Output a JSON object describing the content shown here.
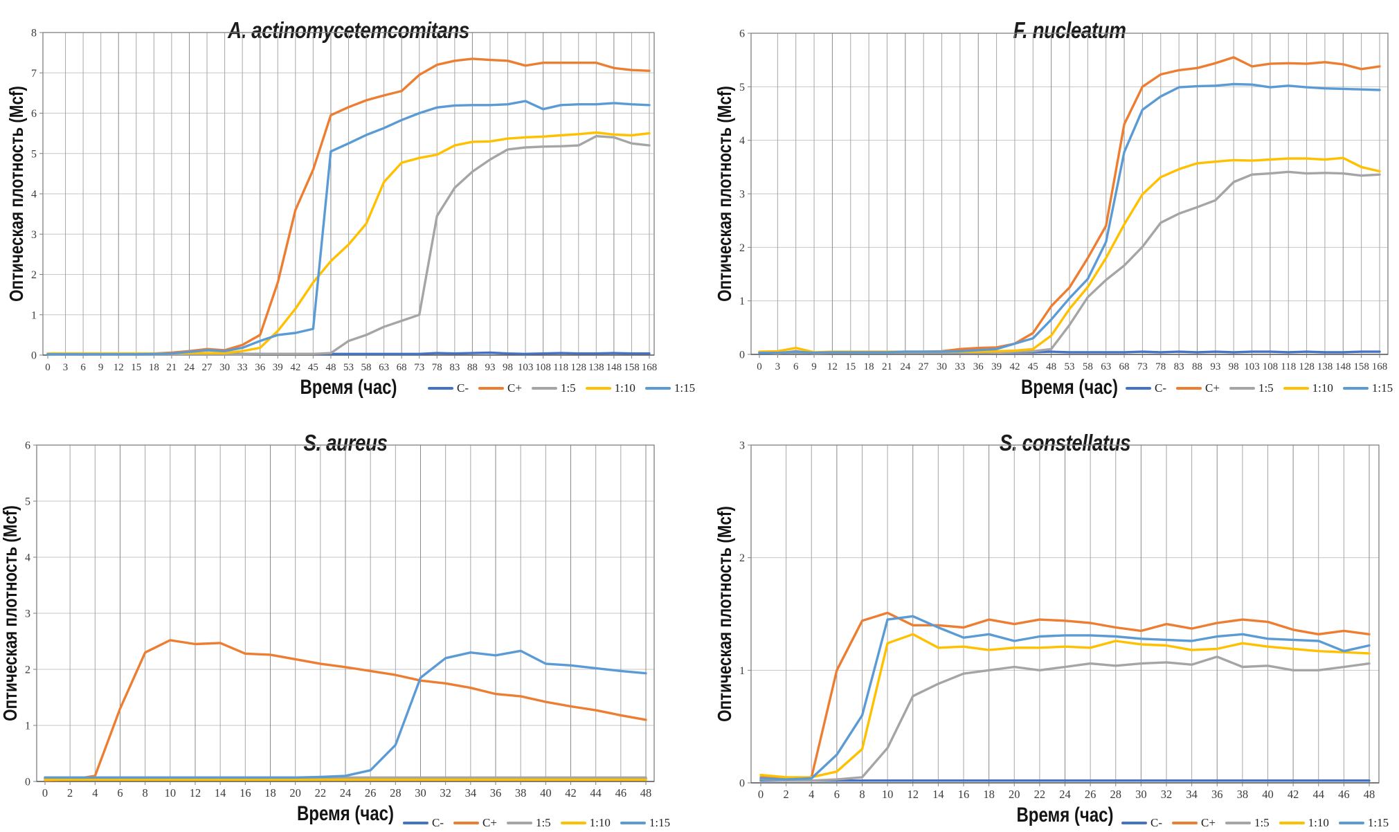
{
  "page": {
    "background": "#ffffff"
  },
  "palette": {
    "plot_border": "#808080",
    "grid_vertical": "#a6a6a6",
    "grid_vertical_major": "#8a8a8a",
    "grid_horizontal": "#c6c6c6",
    "tick_text": "#3a3a3a",
    "series": {
      "c_neg": "#4472C4",
      "c_pos": "#ED7D31",
      "d1_5": "#A5A5A5",
      "d1_10": "#FFC000",
      "d1_15": "#5B9BD5"
    }
  },
  "legend": {
    "labels": [
      "C-",
      "C+",
      "1:5",
      "1:10",
      "1:15"
    ]
  },
  "chart_data": [
    {
      "type": "line",
      "title": "A. actinomycetemcomitans",
      "xlabel": "Время (час)",
      "ylabel": "Оптическая плотность (Mcf)",
      "ylim": [
        0,
        8
      ],
      "y_tick_labels": [
        "0",
        "1",
        "2",
        "3",
        "4",
        "5",
        "6",
        "7",
        "8"
      ],
      "grid": true,
      "legend_position": "bottom-right",
      "categories": [
        "0",
        "3",
        "6",
        "9",
        "12",
        "15",
        "18",
        "21",
        "24",
        "27",
        "30",
        "33",
        "36",
        "39",
        "42",
        "45",
        "48",
        "53",
        "58",
        "63",
        "68",
        "73",
        "78",
        "83",
        "88",
        "93",
        "98",
        "103",
        "108",
        "118",
        "128",
        "138",
        "148",
        "158",
        "168"
      ],
      "series": [
        {
          "name": "C-",
          "color": "#4472C4",
          "values": [
            0.03,
            0.03,
            0.03,
            0.03,
            0.03,
            0.03,
            0.03,
            0.03,
            0.03,
            0.03,
            0.03,
            0.03,
            0.03,
            0.03,
            0.03,
            0.03,
            0.03,
            0.03,
            0.03,
            0.03,
            0.03,
            0.03,
            0.05,
            0.04,
            0.05,
            0.06,
            0.04,
            0.03,
            0.04,
            0.05,
            0.04,
            0.04,
            0.05,
            0.04,
            0.04
          ]
        },
        {
          "name": "C+",
          "color": "#ED7D31",
          "values": [
            0.03,
            0.03,
            0.03,
            0.03,
            0.03,
            0.03,
            0.04,
            0.06,
            0.1,
            0.15,
            0.12,
            0.25,
            0.5,
            1.8,
            3.6,
            4.6,
            5.95,
            6.15,
            6.32,
            6.44,
            6.55,
            6.95,
            7.2,
            7.3,
            7.35,
            7.32,
            7.3,
            7.18,
            7.25,
            7.25,
            7.25,
            7.25,
            7.12,
            7.07,
            7.05
          ]
        },
        {
          "name": "1:5",
          "color": "#A5A5A5",
          "values": [
            0.02,
            0.02,
            0.02,
            0.02,
            0.02,
            0.02,
            0.02,
            0.02,
            0.02,
            0.02,
            0.02,
            0.02,
            0.03,
            0.03,
            0.03,
            0.03,
            0.05,
            0.35,
            0.5,
            0.7,
            0.85,
            1.0,
            3.45,
            4.15,
            4.55,
            4.85,
            5.1,
            5.15,
            5.17,
            5.18,
            5.2,
            5.43,
            5.4,
            5.25,
            5.2
          ]
        },
        {
          "name": "1:10",
          "color": "#FFC000",
          "values": [
            0.04,
            0.04,
            0.04,
            0.04,
            0.04,
            0.04,
            0.04,
            0.04,
            0.05,
            0.05,
            0.05,
            0.1,
            0.18,
            0.6,
            1.15,
            1.8,
            2.33,
            2.74,
            3.26,
            4.29,
            4.77,
            4.89,
            4.97,
            5.2,
            5.29,
            5.3,
            5.37,
            5.4,
            5.42,
            5.45,
            5.48,
            5.52,
            5.47,
            5.45,
            5.5
          ]
        },
        {
          "name": "1:15",
          "color": "#5B9BD5",
          "values": [
            0.02,
            0.02,
            0.02,
            0.02,
            0.02,
            0.02,
            0.03,
            0.04,
            0.08,
            0.12,
            0.1,
            0.18,
            0.35,
            0.5,
            0.55,
            0.65,
            5.05,
            5.25,
            5.46,
            5.63,
            5.83,
            6.0,
            6.14,
            6.19,
            6.2,
            6.2,
            6.22,
            6.3,
            6.1,
            6.2,
            6.22,
            6.22,
            6.25,
            6.22,
            6.2
          ]
        }
      ]
    },
    {
      "type": "line",
      "title": "F. nucleatum",
      "xlabel": "Время (час)",
      "ylabel": "Оптическая плотность (Mcf)",
      "ylim": [
        0,
        6
      ],
      "y_tick_labels": [
        "0",
        "1",
        "2",
        "3",
        "4",
        "5",
        "6"
      ],
      "grid": true,
      "legend_position": "bottom-right",
      "categories": [
        "0",
        "3",
        "6",
        "9",
        "12",
        "15",
        "18",
        "21",
        "24",
        "27",
        "30",
        "33",
        "36",
        "39",
        "42",
        "45",
        "48",
        "53",
        "58",
        "63",
        "68",
        "73",
        "78",
        "83",
        "88",
        "93",
        "98",
        "103",
        "108",
        "118",
        "128",
        "138",
        "148",
        "158",
        "168"
      ],
      "series": [
        {
          "name": "C-",
          "color": "#4472C4",
          "values": [
            0.04,
            0.03,
            0.04,
            0.03,
            0.04,
            0.04,
            0.04,
            0.04,
            0.04,
            0.04,
            0.04,
            0.04,
            0.04,
            0.04,
            0.04,
            0.04,
            0.05,
            0.04,
            0.04,
            0.04,
            0.04,
            0.05,
            0.04,
            0.05,
            0.04,
            0.05,
            0.04,
            0.05,
            0.05,
            0.04,
            0.05,
            0.04,
            0.04,
            0.05,
            0.05
          ]
        },
        {
          "name": "C+",
          "color": "#ED7D31",
          "values": [
            0.04,
            0.02,
            0.06,
            0.02,
            0.03,
            0.03,
            0.04,
            0.04,
            0.05,
            0.05,
            0.06,
            0.1,
            0.12,
            0.13,
            0.2,
            0.4,
            0.9,
            1.25,
            1.8,
            2.4,
            4.3,
            5.0,
            5.23,
            5.31,
            5.35,
            5.44,
            5.55,
            5.38,
            5.43,
            5.44,
            5.43,
            5.46,
            5.42,
            5.33,
            5.38
          ]
        },
        {
          "name": "1:5",
          "color": "#A5A5A5",
          "values": [
            0.03,
            0.03,
            0.03,
            0.03,
            0.03,
            0.03,
            0.03,
            0.03,
            0.03,
            0.03,
            0.03,
            0.03,
            0.03,
            0.04,
            0.05,
            0.06,
            0.1,
            0.55,
            1.07,
            1.39,
            1.66,
            2.01,
            2.46,
            2.63,
            2.75,
            2.88,
            3.22,
            3.36,
            3.38,
            3.41,
            3.38,
            3.39,
            3.38,
            3.34,
            3.36
          ]
        },
        {
          "name": "1:10",
          "color": "#FFC000",
          "values": [
            0.05,
            0.06,
            0.12,
            0.04,
            0.05,
            0.05,
            0.05,
            0.05,
            0.05,
            0.05,
            0.05,
            0.05,
            0.05,
            0.06,
            0.07,
            0.1,
            0.35,
            0.85,
            1.26,
            1.8,
            2.43,
            2.99,
            3.31,
            3.46,
            3.57,
            3.6,
            3.63,
            3.62,
            3.64,
            3.66,
            3.66,
            3.64,
            3.67,
            3.5,
            3.42
          ]
        },
        {
          "name": "1:15",
          "color": "#5B9BD5",
          "values": [
            0.03,
            0.03,
            0.05,
            0.03,
            0.04,
            0.04,
            0.04,
            0.04,
            0.05,
            0.05,
            0.05,
            0.06,
            0.08,
            0.1,
            0.2,
            0.3,
            0.65,
            1.05,
            1.41,
            2.1,
            3.78,
            4.57,
            4.82,
            4.99,
            5.01,
            5.02,
            5.05,
            5.04,
            4.99,
            5.02,
            4.99,
            4.97,
            4.96,
            4.95,
            4.94
          ]
        }
      ]
    },
    {
      "type": "line",
      "title": "S. aureus",
      "xlabel": "Время (час)",
      "ylabel": "Оптическая плотность (Mcf)",
      "ylim": [
        0,
        6
      ],
      "y_tick_labels": [
        "0",
        "1",
        "2",
        "3",
        "4",
        "5",
        "6"
      ],
      "grid": true,
      "legend_position": "bottom-right",
      "categories": [
        "0",
        "2",
        "4",
        "6",
        "8",
        "10",
        "12",
        "14",
        "16",
        "18",
        "20",
        "22",
        "24",
        "26",
        "28",
        "30",
        "32",
        "34",
        "36",
        "38",
        "40",
        "42",
        "44",
        "46",
        "48"
      ],
      "series": [
        {
          "name": "C-",
          "color": "#4472C4",
          "values": [
            0.05,
            0.05,
            0.05,
            0.05,
            0.05,
            0.05,
            0.05,
            0.05,
            0.05,
            0.05,
            0.05,
            0.05,
            0.05,
            0.05,
            0.05,
            0.05,
            0.05,
            0.05,
            0.05,
            0.05,
            0.05,
            0.05,
            0.05,
            0.05,
            0.05
          ]
        },
        {
          "name": "C+",
          "color": "#ED7D31",
          "values": [
            0.02,
            0.03,
            0.1,
            1.3,
            2.3,
            2.52,
            2.45,
            2.47,
            2.28,
            2.26,
            2.18,
            2.1,
            2.04,
            1.97,
            1.9,
            1.8,
            1.75,
            1.67,
            1.56,
            1.52,
            1.42,
            1.34,
            1.27,
            1.18,
            1.1
          ]
        },
        {
          "name": "1:5",
          "color": "#A5A5A5",
          "values": [
            0.07,
            0.07,
            0.07,
            0.07,
            0.07,
            0.07,
            0.07,
            0.07,
            0.07,
            0.07,
            0.07,
            0.07,
            0.07,
            0.07,
            0.07,
            0.07,
            0.07,
            0.07,
            0.07,
            0.07,
            0.07,
            0.07,
            0.07,
            0.07,
            0.07
          ]
        },
        {
          "name": "1:10",
          "color": "#FFC000",
          "values": [
            0.03,
            0.03,
            0.03,
            0.03,
            0.03,
            0.03,
            0.03,
            0.03,
            0.03,
            0.03,
            0.03,
            0.03,
            0.03,
            0.03,
            0.03,
            0.03,
            0.03,
            0.03,
            0.03,
            0.03,
            0.03,
            0.03,
            0.03,
            0.03,
            0.03
          ]
        },
        {
          "name": "1:15",
          "color": "#5B9BD5",
          "values": [
            0.07,
            0.07,
            0.07,
            0.07,
            0.07,
            0.07,
            0.07,
            0.07,
            0.07,
            0.07,
            0.07,
            0.08,
            0.1,
            0.2,
            0.65,
            1.85,
            2.2,
            2.3,
            2.25,
            2.33,
            2.1,
            2.07,
            2.02,
            1.97,
            1.93
          ]
        }
      ]
    },
    {
      "type": "line",
      "title": "S. constellatus",
      "xlabel": "Время (час)",
      "ylabel": "Оптическая плотность (Mcf)",
      "ylim": [
        0,
        3
      ],
      "y_tick_labels": [
        "0",
        "1",
        "2",
        "3"
      ],
      "grid": true,
      "legend_position": "bottom-right",
      "categories": [
        "0",
        "2",
        "4",
        "6",
        "8",
        "10",
        "12",
        "14",
        "16",
        "18",
        "20",
        "22",
        "24",
        "26",
        "28",
        "30",
        "32",
        "34",
        "36",
        "38",
        "40",
        "42",
        "44",
        "46",
        "48"
      ],
      "series": [
        {
          "name": "C-",
          "color": "#4472C4",
          "values": [
            0.02,
            0.02,
            0.02,
            0.02,
            0.02,
            0.02,
            0.02,
            0.02,
            0.02,
            0.02,
            0.02,
            0.02,
            0.02,
            0.02,
            0.02,
            0.02,
            0.02,
            0.02,
            0.02,
            0.02,
            0.02,
            0.02,
            0.02,
            0.02,
            0.02
          ]
        },
        {
          "name": "C+",
          "color": "#ED7D31",
          "values": [
            0.05,
            0.04,
            0.05,
            1.0,
            1.44,
            1.51,
            1.4,
            1.4,
            1.38,
            1.45,
            1.41,
            1.45,
            1.44,
            1.42,
            1.38,
            1.35,
            1.41,
            1.37,
            1.42,
            1.45,
            1.43,
            1.36,
            1.32,
            1.35,
            1.32
          ]
        },
        {
          "name": "1:5",
          "color": "#A5A5A5",
          "values": [
            0.03,
            0.02,
            0.02,
            0.03,
            0.05,
            0.31,
            0.77,
            0.88,
            0.97,
            1.0,
            1.03,
            1.0,
            1.03,
            1.06,
            1.04,
            1.06,
            1.07,
            1.05,
            1.12,
            1.03,
            1.04,
            1.0,
            1.0,
            1.03,
            1.06
          ]
        },
        {
          "name": "1:10",
          "color": "#FFC000",
          "values": [
            0.07,
            0.05,
            0.05,
            0.1,
            0.3,
            1.24,
            1.32,
            1.2,
            1.21,
            1.18,
            1.2,
            1.2,
            1.21,
            1.2,
            1.26,
            1.23,
            1.22,
            1.18,
            1.19,
            1.24,
            1.21,
            1.19,
            1.17,
            1.16,
            1.15
          ]
        },
        {
          "name": "1:15",
          "color": "#5B9BD5",
          "values": [
            0.04,
            0.03,
            0.04,
            0.25,
            0.6,
            1.45,
            1.48,
            1.38,
            1.29,
            1.32,
            1.26,
            1.3,
            1.31,
            1.31,
            1.3,
            1.28,
            1.27,
            1.26,
            1.3,
            1.32,
            1.28,
            1.27,
            1.26,
            1.17,
            1.22
          ]
        }
      ]
    }
  ]
}
